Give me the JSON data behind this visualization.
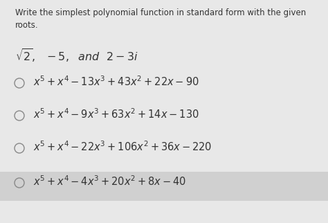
{
  "background_color": "#e8e8e8",
  "header_text": "Write the simplest polynomial function in standard form with the given\nroots.",
  "roots_text": "$\\sqrt{2},\\ \\ -5,\\ \\ \\mathit{and}\\ \\ 2-3i$",
  "options": [
    "$x^5 + x^4 - 13x^3 + 43x^2 + 22x - 90$",
    "$x^5 + x^4 - 9x^3 + 63x^2 + 14x - 130$",
    "$x^5 + x^4 - 22x^3 + 106x^2 + 36x - 220$",
    "$x^5 + x^4 - 4x^3 + 20x^2 + 8x - 40$"
  ],
  "highlighted_option": 3,
  "highlight_color": "#d0d0d0",
  "font_size_header": 8.5,
  "font_size_roots": 11.5,
  "font_size_options": 10.5,
  "text_color": "#333333",
  "circle_color": "#888888"
}
